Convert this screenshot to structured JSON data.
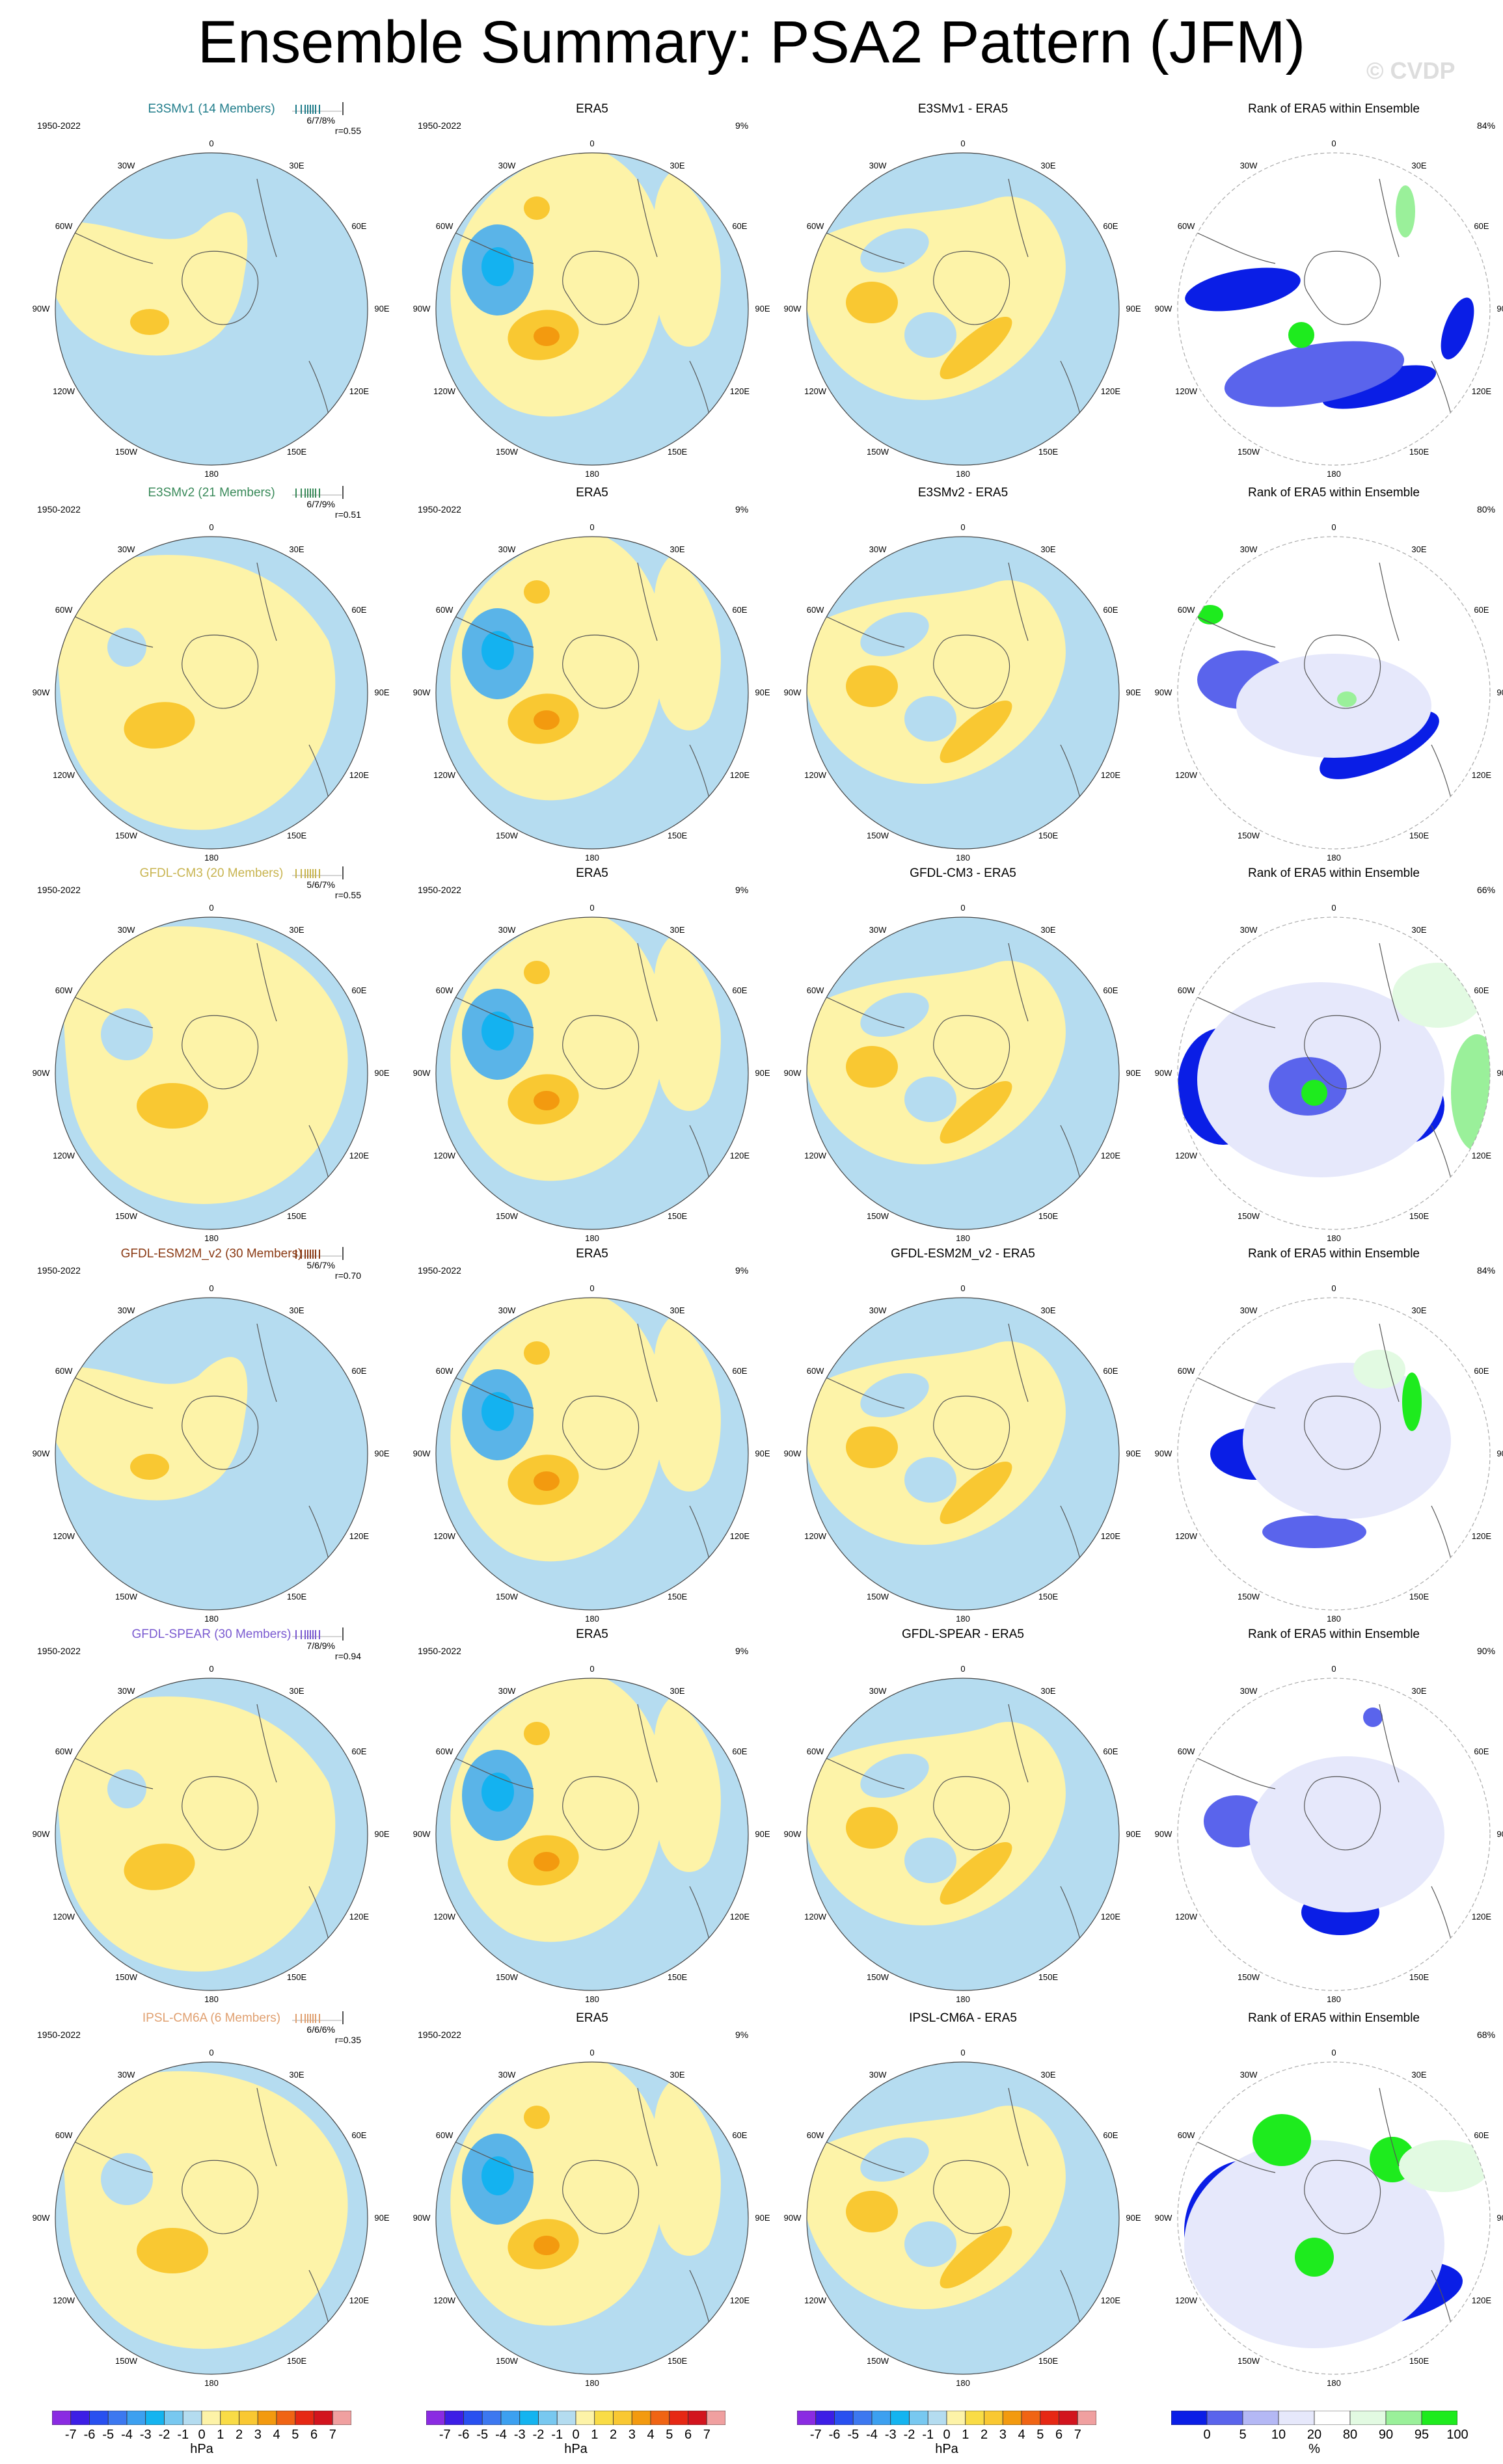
{
  "title": "Ensemble Summary: PSA2 Pattern (JFM)",
  "watermark": "© CVDP",
  "period": "1950-2022",
  "lon_labels": [
    "0",
    "30E",
    "60E",
    "90E",
    "120E",
    "150E",
    "180",
    "150W",
    "120W",
    "90W",
    "60W",
    "30W"
  ],
  "colors": {
    "blue_light": "#b5dcf0",
    "blue_mid": "#5ab4e8",
    "blue_strong": "#14b2f0",
    "yellow_light": "#fdf3a8",
    "orange_mid": "#f9c832",
    "orange_strong": "#f39a0f",
    "rank_dark": "#0a1ee6",
    "rank_mid": "#5a64ec",
    "rank_light": "#b4b8f5",
    "rank_pale": "#e6e8fb",
    "green_pale": "#e2fae2",
    "green_mid": "#9af09a",
    "green_strong": "#1eeb1e"
  },
  "rows": [
    {
      "model": "E3SMv1 (14 Members)",
      "model_color": "#1f7c8a",
      "stats": "6/7/8%",
      "r": "r=0.55",
      "era_pct": "9%",
      "diff_title": "E3SMv1 - ERA5",
      "rank_title": "Rank of ERA5 within Ensemble",
      "rank_pct": "84%"
    },
    {
      "model": "E3SMv2 (21 Members)",
      "model_color": "#3a8a5a",
      "stats": "6/7/9%",
      "r": "r=0.51",
      "era_pct": "9%",
      "diff_title": "E3SMv2 - ERA5",
      "rank_title": "Rank of ERA5 within Ensemble",
      "rank_pct": "80%"
    },
    {
      "model": "GFDL-CM3 (20 Members)",
      "model_color": "#c8b450",
      "stats": "5/6/7%",
      "r": "r=0.55",
      "era_pct": "9%",
      "diff_title": "GFDL-CM3 - ERA5",
      "rank_title": "Rank of ERA5 within Ensemble",
      "rank_pct": "66%"
    },
    {
      "model": "GFDL-ESM2M_v2 (30 Members)",
      "model_color": "#8a3a14",
      "stats": "5/6/7%",
      "r": "r=0.70",
      "era_pct": "9%",
      "diff_title": "GFDL-ESM2M_v2 - ERA5",
      "rank_title": "Rank of ERA5 within Ensemble",
      "rank_pct": "84%"
    },
    {
      "model": "GFDL-SPEAR (30 Members)",
      "model_color": "#7a5ad0",
      "stats": "7/8/9%",
      "r": "r=0.94",
      "era_pct": "9%",
      "diff_title": "GFDL-SPEAR - ERA5",
      "rank_title": "Rank of ERA5 within Ensemble",
      "rank_pct": "90%"
    },
    {
      "model": "IPSL-CM6A (6 Members)",
      "model_color": "#e0a070",
      "stats": "6/6/6%",
      "r": "r=0.35",
      "era_pct": "9%",
      "diff_title": "IPSL-CM6A - ERA5",
      "rank_title": "Rank of ERA5 within Ensemble",
      "rank_pct": "68%"
    }
  ],
  "era5_title": "ERA5",
  "colorbar_hpa": {
    "labels": [
      "-7",
      "-6",
      "-5",
      "-4",
      "-3",
      "-2",
      "-1",
      "0",
      "1",
      "2",
      "3",
      "4",
      "5",
      "6",
      "7"
    ],
    "unit": "hPa",
    "colors": [
      "#8a2be2",
      "#3c1ee6",
      "#2850f0",
      "#3c78f0",
      "#3ca0f0",
      "#14b4f0",
      "#78c8f0",
      "#b4dcf0",
      "#fdf3a8",
      "#f9dc46",
      "#f9c832",
      "#f39a0f",
      "#f06414",
      "#e62814",
      "#d2141e",
      "#f0a0a0"
    ]
  },
  "colorbar_rank": {
    "labels": [
      "0",
      "5",
      "10",
      "20",
      "80",
      "90",
      "95",
      "100"
    ],
    "unit": "%",
    "colors": [
      "#0a1ee6",
      "#5a64ec",
      "#b4b8f5",
      "#e6e8fb",
      "#ffffff",
      "#e2fae2",
      "#9af09a",
      "#1eeb1e"
    ]
  }
}
